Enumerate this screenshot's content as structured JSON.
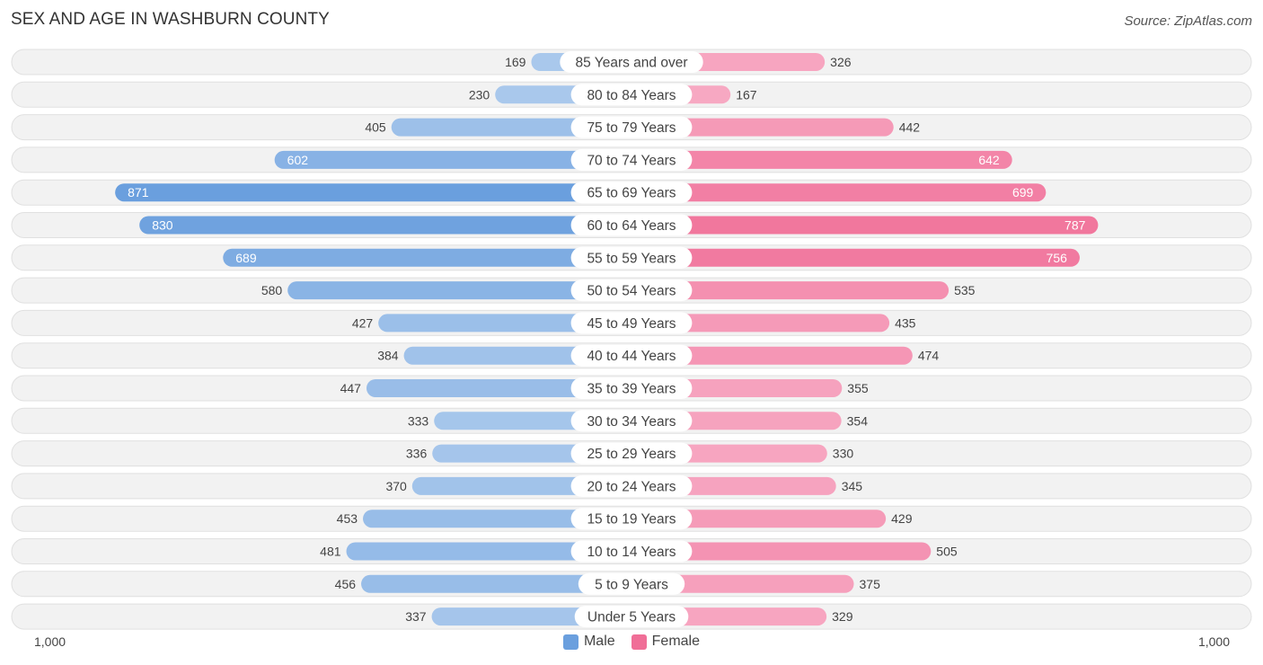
{
  "header": {
    "title": "SEX AND AGE IN WASHBURN COUNTY",
    "source": "Source: ZipAtlas.com"
  },
  "legend": {
    "male_label": "Male",
    "female_label": "Female"
  },
  "axis": {
    "left_label": "1,000",
    "right_label": "1,000"
  },
  "colors": {
    "male_light": "#a9c8ec",
    "male_dark": "#6a9fde",
    "female_light": "#f7a8c2",
    "female_dark": "#f06e97",
    "legend_male": "#6a9fde",
    "legend_female": "#f06e97"
  },
  "chart_data": {
    "type": "bar",
    "orientation": "horizontal-butterfly",
    "title": "SEX AND AGE IN WASHBURN COUNTY",
    "xlim": [
      -1000,
      1000
    ],
    "categories": [
      "85 Years and over",
      "80 to 84 Years",
      "75 to 79 Years",
      "70 to 74 Years",
      "65 to 69 Years",
      "60 to 64 Years",
      "55 to 59 Years",
      "50 to 54 Years",
      "45 to 49 Years",
      "40 to 44 Years",
      "35 to 39 Years",
      "30 to 34 Years",
      "25 to 29 Years",
      "20 to 24 Years",
      "15 to 19 Years",
      "10 to 14 Years",
      "5 to 9 Years",
      "Under 5 Years"
    ],
    "series": [
      {
        "name": "Male",
        "values": [
          169,
          230,
          405,
          602,
          871,
          830,
          689,
          580,
          427,
          384,
          447,
          333,
          336,
          370,
          453,
          481,
          456,
          337
        ]
      },
      {
        "name": "Female",
        "values": [
          326,
          167,
          442,
          642,
          699,
          787,
          756,
          535,
          435,
          474,
          355,
          354,
          330,
          345,
          429,
          505,
          375,
          329
        ]
      }
    ],
    "legend_position": "bottom-center"
  }
}
